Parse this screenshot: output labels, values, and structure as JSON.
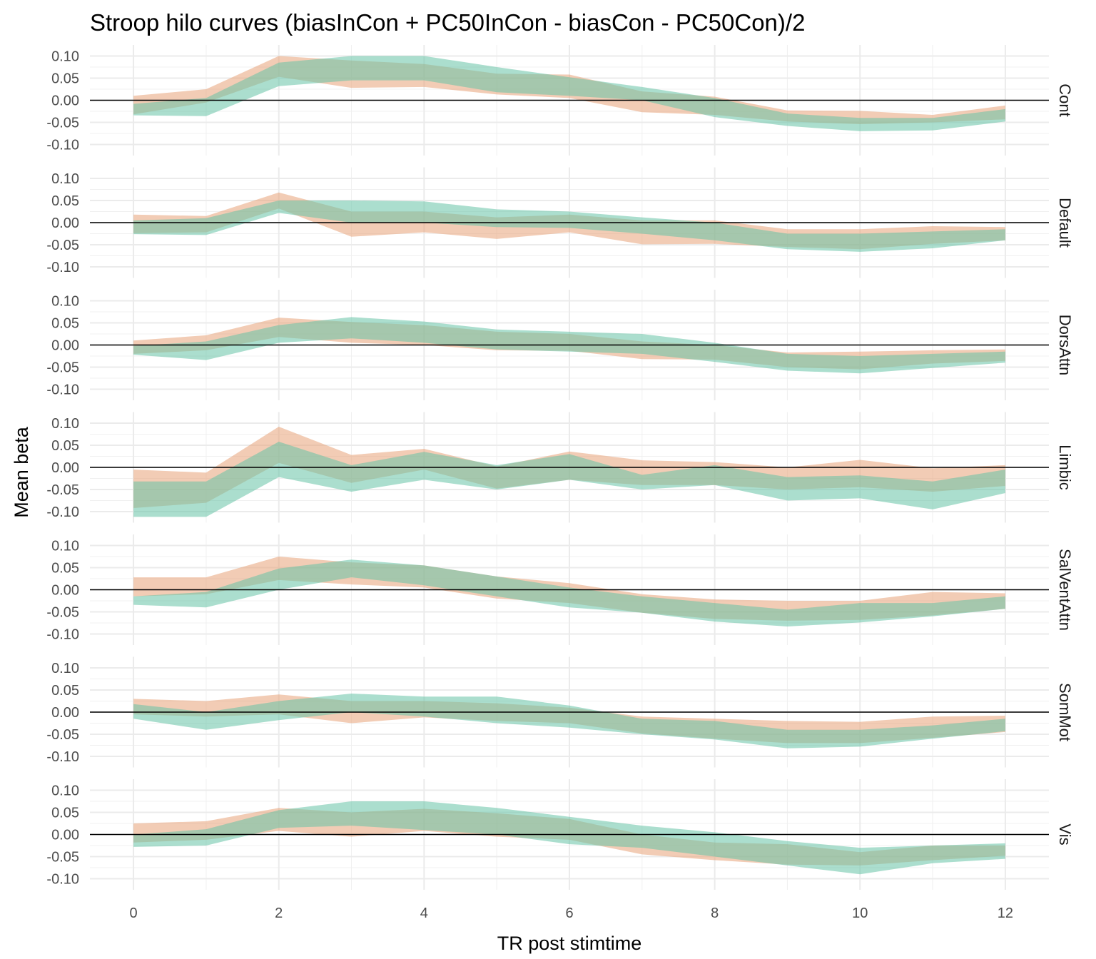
{
  "chart_data": {
    "type": "area",
    "title": "Stroop hilo curves (biasInCon + PC50InCon - biasCon - PC50Con)/2",
    "xlabel": "TR post stimtime",
    "ylabel": "Mean beta",
    "x": [
      0,
      1,
      2,
      3,
      4,
      5,
      6,
      7,
      8,
      9,
      10,
      11,
      12
    ],
    "x_ticks": [
      0,
      2,
      4,
      6,
      8,
      10,
      12
    ],
    "x_tick_labels": [
      "0",
      "2",
      "4",
      "6",
      "8",
      "10",
      "12"
    ],
    "xlim": [
      -0.6,
      12.6
    ],
    "ylim": [
      -0.125,
      0.125
    ],
    "y_ticks": [
      -0.1,
      -0.05,
      0.0,
      0.05,
      0.1
    ],
    "y_tick_labels": [
      "-0.10",
      "-0.05",
      "0.00",
      "0.05",
      "0.10"
    ],
    "hline": 0,
    "grid": true,
    "legend": "none",
    "series_colors": [
      "#e8a279",
      "#66c2a5"
    ],
    "facets": [
      {
        "label": "Cont",
        "bands": [
          {
            "lower": [
              -0.032,
              -0.005,
              0.053,
              0.028,
              0.03,
              0.013,
              0.005,
              -0.027,
              -0.033,
              -0.048,
              -0.054,
              -0.05,
              -0.043
            ],
            "upper": [
              0.01,
              0.025,
              0.1,
              0.09,
              0.082,
              0.06,
              0.058,
              0.02,
              0.008,
              -0.023,
              -0.024,
              -0.033,
              -0.012
            ]
          },
          {
            "lower": [
              -0.034,
              -0.036,
              0.032,
              0.045,
              0.045,
              0.018,
              0.01,
              0.0,
              -0.038,
              -0.058,
              -0.07,
              -0.068,
              -0.048
            ],
            "upper": [
              -0.008,
              0.005,
              0.085,
              0.1,
              0.1,
              0.075,
              0.052,
              0.03,
              0.005,
              -0.03,
              -0.04,
              -0.04,
              -0.02
            ]
          }
        ]
      },
      {
        "label": "Default",
        "bands": [
          {
            "lower": [
              -0.024,
              -0.022,
              0.032,
              -0.032,
              -0.022,
              -0.037,
              -0.022,
              -0.049,
              -0.048,
              -0.055,
              -0.06,
              -0.048,
              -0.04
            ],
            "upper": [
              0.018,
              0.015,
              0.068,
              0.025,
              0.025,
              0.012,
              0.018,
              0.005,
              0.005,
              -0.015,
              -0.015,
              -0.008,
              -0.01
            ]
          },
          {
            "lower": [
              -0.026,
              -0.028,
              0.022,
              0.0,
              0.0,
              -0.01,
              -0.012,
              -0.025,
              -0.04,
              -0.06,
              -0.066,
              -0.058,
              -0.04
            ],
            "upper": [
              0.005,
              0.01,
              0.05,
              0.05,
              0.048,
              0.03,
              0.025,
              0.012,
              0.0,
              -0.025,
              -0.025,
              -0.02,
              -0.015
            ]
          }
        ]
      },
      {
        "label": "DorsAttn",
        "bands": [
          {
            "lower": [
              -0.02,
              -0.012,
              0.018,
              0.005,
              0.0,
              -0.012,
              -0.013,
              -0.032,
              -0.033,
              -0.05,
              -0.055,
              -0.042,
              -0.036
            ],
            "upper": [
              0.01,
              0.022,
              0.062,
              0.052,
              0.045,
              0.03,
              0.025,
              0.008,
              0.0,
              -0.017,
              -0.015,
              -0.012,
              -0.01
            ]
          },
          {
            "lower": [
              -0.022,
              -0.034,
              0.005,
              0.015,
              0.005,
              -0.01,
              -0.015,
              -0.02,
              -0.038,
              -0.058,
              -0.064,
              -0.052,
              -0.04
            ],
            "upper": [
              -0.002,
              0.008,
              0.045,
              0.063,
              0.053,
              0.035,
              0.03,
              0.025,
              0.005,
              -0.02,
              -0.025,
              -0.02,
              -0.015
            ]
          }
        ]
      },
      {
        "label": "Limbic",
        "bands": [
          {
            "lower": [
              -0.092,
              -0.08,
              0.01,
              -0.035,
              -0.005,
              -0.048,
              -0.028,
              -0.04,
              -0.04,
              -0.05,
              -0.045,
              -0.055,
              -0.042
            ],
            "upper": [
              -0.005,
              -0.012,
              0.092,
              0.028,
              0.042,
              0.002,
              0.036,
              0.016,
              0.012,
              0.0,
              0.017,
              -0.002,
              0.005
            ]
          },
          {
            "lower": [
              -0.112,
              -0.112,
              -0.022,
              -0.055,
              -0.028,
              -0.05,
              -0.028,
              -0.05,
              -0.04,
              -0.075,
              -0.07,
              -0.095,
              -0.058
            ],
            "upper": [
              -0.032,
              -0.032,
              0.058,
              0.005,
              0.035,
              0.005,
              0.03,
              -0.017,
              0.005,
              -0.022,
              -0.018,
              -0.032,
              -0.005
            ]
          }
        ]
      },
      {
        "label": "SalVentAttn",
        "bands": [
          {
            "lower": [
              -0.015,
              -0.01,
              0.022,
              0.012,
              0.005,
              -0.02,
              -0.03,
              -0.052,
              -0.066,
              -0.07,
              -0.068,
              -0.058,
              -0.043
            ],
            "upper": [
              0.028,
              0.028,
              0.075,
              0.062,
              0.055,
              0.03,
              0.015,
              -0.01,
              -0.022,
              -0.025,
              -0.025,
              -0.005,
              -0.008
            ]
          },
          {
            "lower": [
              -0.034,
              -0.04,
              0.0,
              0.028,
              0.01,
              -0.015,
              -0.04,
              -0.052,
              -0.072,
              -0.083,
              -0.074,
              -0.06,
              -0.043
            ],
            "upper": [
              -0.015,
              -0.005,
              0.048,
              0.068,
              0.055,
              0.03,
              0.005,
              -0.015,
              -0.03,
              -0.045,
              -0.03,
              -0.03,
              -0.015
            ]
          }
        ]
      },
      {
        "label": "SomMot",
        "bands": [
          {
            "lower": [
              -0.005,
              -0.01,
              -0.005,
              -0.025,
              -0.012,
              -0.02,
              -0.025,
              -0.048,
              -0.06,
              -0.07,
              -0.07,
              -0.058,
              -0.045
            ],
            "upper": [
              0.03,
              0.025,
              0.04,
              0.025,
              0.025,
              0.02,
              0.01,
              -0.01,
              -0.015,
              -0.02,
              -0.022,
              -0.01,
              -0.008
            ]
          },
          {
            "lower": [
              -0.015,
              -0.04,
              -0.018,
              0.0,
              -0.01,
              -0.025,
              -0.035,
              -0.05,
              -0.062,
              -0.082,
              -0.078,
              -0.06,
              -0.043
            ],
            "upper": [
              0.018,
              0.0,
              0.025,
              0.042,
              0.035,
              0.035,
              0.015,
              -0.015,
              -0.02,
              -0.04,
              -0.04,
              -0.03,
              -0.015
            ]
          }
        ]
      },
      {
        "label": "Vis",
        "bands": [
          {
            "lower": [
              -0.018,
              -0.012,
              0.008,
              -0.005,
              0.008,
              -0.005,
              -0.012,
              -0.045,
              -0.058,
              -0.068,
              -0.07,
              -0.058,
              -0.048
            ],
            "upper": [
              0.025,
              0.03,
              0.06,
              0.05,
              0.058,
              0.048,
              0.035,
              0.0,
              -0.018,
              -0.022,
              -0.04,
              -0.025,
              -0.025
            ]
          },
          {
            "lower": [
              -0.028,
              -0.025,
              0.015,
              0.02,
              0.01,
              0.0,
              -0.022,
              -0.03,
              -0.05,
              -0.07,
              -0.09,
              -0.065,
              -0.055
            ],
            "upper": [
              0.0,
              0.012,
              0.055,
              0.075,
              0.075,
              0.06,
              0.04,
              0.02,
              0.005,
              -0.015,
              -0.03,
              -0.025,
              -0.02
            ]
          }
        ]
      }
    ]
  }
}
